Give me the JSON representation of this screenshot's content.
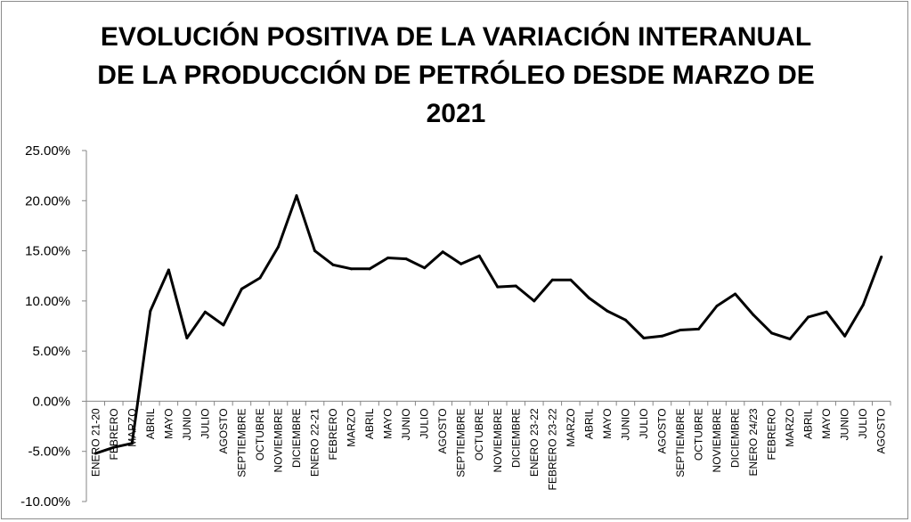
{
  "chart_data": {
    "type": "line",
    "title": "EVOLUCIÓN POSITIVA DE LA VARIACIÓN INTERANUAL DE LA PRODUCCIÓN DE PETRÓLEO DESDE MARZO DE 2021",
    "xlabel": "",
    "ylabel": "",
    "ylim": [
      -10,
      25
    ],
    "y_ticks": [
      "-10.00%",
      "-5.00%",
      "0.00%",
      "5.00%",
      "10.00%",
      "15.00%",
      "20.00%",
      "25.00%"
    ],
    "grid": false,
    "legend": "none",
    "line_color": "#000000",
    "categories": [
      "ENERO 21-20",
      "FEBRERO",
      "MARZO",
      "ABRIL",
      "MAYO",
      "JUNIO",
      "JULIO",
      "AGOSTO",
      "SEPTIEMBRE",
      "OCTUBRE",
      "NOVIEMBRE",
      "DICIEMBRE",
      "ENERO 22-21",
      "FEBRERO",
      "MARZO",
      "ABRIL",
      "MAYO",
      "JUNIO",
      "JULIO",
      "AGOSTO",
      "SEPTIEMBRE",
      "OCTUBRE",
      "NOVIEMBRE",
      "DICIEMBRE",
      "ENERO 23-22",
      "FEBRERO 23-22",
      "MARZO",
      "ABRIL",
      "MAYO",
      "JUNIO",
      "JULIO",
      "AGOSTO",
      "SEPTIEMBRE",
      "OCTUBRE",
      "NOVIEMBRE",
      "DICIEMBRE",
      "ENERO 24/23",
      "FEBRERO",
      "MARZO",
      "ABRIL",
      "MAYO",
      "JUNIO",
      "JULIO",
      "AGOSTO"
    ],
    "series": [
      {
        "values": [
          -5.2,
          -4.6,
          -4.2,
          9.0,
          13.1,
          6.3,
          8.9,
          7.6,
          11.2,
          12.3,
          15.4,
          20.5,
          15.0,
          13.6,
          13.2,
          13.2,
          14.3,
          14.2,
          13.3,
          14.9,
          13.7,
          14.5,
          11.4,
          11.5,
          10.0,
          12.1,
          12.1,
          10.3,
          9.0,
          8.1,
          6.3,
          6.5,
          7.1,
          7.2,
          9.5,
          10.7,
          8.6,
          6.8,
          6.2,
          8.4,
          8.9,
          6.5,
          9.6,
          14.4
        ]
      }
    ]
  }
}
